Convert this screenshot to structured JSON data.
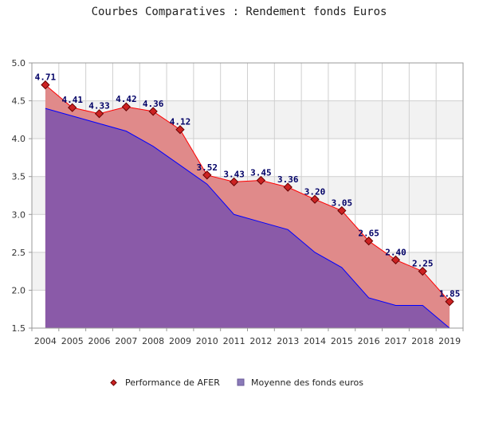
{
  "chart_data": {
    "type": "area",
    "title": "Courbes Comparatives : Rendement fonds Euros",
    "xlabel": "",
    "ylabel": "",
    "categories": [
      "2004",
      "2005",
      "2006",
      "2007",
      "2008",
      "2009",
      "2010",
      "2011",
      "2012",
      "2013",
      "2014",
      "2015",
      "2016",
      "2017",
      "2018",
      "2019"
    ],
    "ylim": [
      1.5,
      5.0
    ],
    "yticks": [
      "5.0",
      "4.5",
      "4.0",
      "3.5",
      "3.0",
      "2.5",
      "2.0",
      "1.5"
    ],
    "grid": true,
    "legend_position": "bottom",
    "series": [
      {
        "name": "Performance de AFER",
        "kind": "area-line-markers",
        "values": [
          4.71,
          4.41,
          4.33,
          4.42,
          4.36,
          4.12,
          3.52,
          3.43,
          3.45,
          3.36,
          3.2,
          3.05,
          2.65,
          2.4,
          2.25,
          1.85
        ],
        "labels": [
          "4.71",
          "4.41",
          "4.33",
          "4.42",
          "4.36",
          "4.12",
          "3.52",
          "3.43",
          "3.45",
          "3.36",
          "3.20",
          "3.05",
          "2.65",
          "2.40",
          "2.25",
          "1.85"
        ],
        "fill_color": "#e08a8a",
        "line_color": "#ff0000",
        "marker_color": "#cc2222",
        "marker_outline": "#660000"
      },
      {
        "name": "Moyenne des fonds euros",
        "kind": "area",
        "values": [
          4.4,
          4.3,
          4.2,
          4.1,
          3.9,
          3.65,
          3.4,
          3.0,
          2.9,
          2.8,
          2.5,
          2.3,
          1.9,
          1.8,
          1.8,
          1.5
        ],
        "fill_color": "#8a5aa8",
        "line_color": "#0000ff"
      }
    ],
    "band_color": "#f2f2f2",
    "grid_color": "#cfcfcf",
    "axis_color": "#999999"
  }
}
